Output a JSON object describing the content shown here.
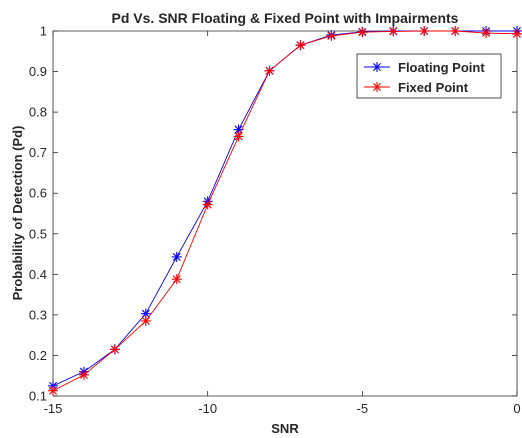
{
  "chart_data": {
    "type": "line",
    "title": "Pd Vs. SNR Floating & Fixed Point with Impairments",
    "xlabel": "SNR",
    "ylabel": "Probability of Detection (Pd)",
    "xlim": [
      -15,
      0
    ],
    "ylim": [
      0.1,
      1
    ],
    "xticks": [
      "-15",
      "-10",
      "-5",
      "0"
    ],
    "yticks": [
      "0.1",
      "0.2",
      "0.3",
      "0.4",
      "0.5",
      "0.6",
      "0.7",
      "0.8",
      "0.9",
      "1"
    ],
    "grid": false,
    "legend_position": "top-right",
    "marker": "asterisk",
    "x": [
      -15,
      -14,
      -13,
      -12,
      -11,
      -10,
      -9,
      -8,
      -7,
      -6,
      -5,
      -4,
      -3,
      -2,
      -1,
      0
    ],
    "series": [
      {
        "name": "Floating Point",
        "color": "#0000ff",
        "values": [
          0.125,
          0.16,
          0.215,
          0.303,
          0.443,
          0.58,
          0.757,
          0.902,
          0.965,
          0.99,
          0.998,
          1.0,
          1.0,
          1.0,
          1.0,
          1.0
        ]
      },
      {
        "name": "Fixed Point",
        "color": "#ff0000",
        "values": [
          0.113,
          0.152,
          0.215,
          0.285,
          0.388,
          0.572,
          0.74,
          0.902,
          0.965,
          0.988,
          0.997,
          0.999,
          1.0,
          1.0,
          0.995,
          0.993
        ]
      }
    ]
  }
}
